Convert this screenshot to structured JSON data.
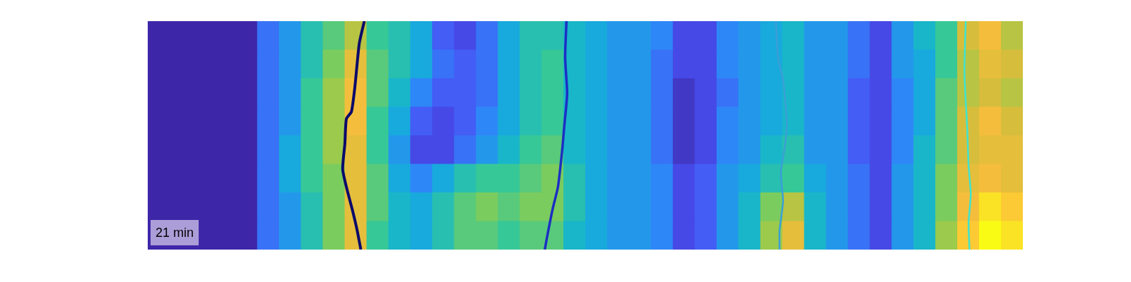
{
  "chart_data": {
    "type": "heatmap",
    "xlim": [
      0,
      40
    ],
    "ylim": [
      0,
      8
    ],
    "tick_labels": false,
    "color_range": [
      0,
      1
    ],
    "cells": [
      [
        0,
        0,
        0,
        0,
        0,
        0.2,
        0.3,
        0.45,
        0.55,
        0.7,
        0.5,
        0.45,
        0.35,
        0.15,
        0.1,
        0.2,
        0.35,
        0.45,
        0.45,
        0.4,
        0.35,
        0.3,
        0.3,
        0.25,
        0.1,
        0.1,
        0.25,
        0.3,
        0.35,
        0.4,
        0.3,
        0.3,
        0.2,
        0.1,
        0.3,
        0.4,
        0.5,
        0.75,
        0.85,
        0.7
      ],
      [
        0,
        0,
        0,
        0,
        0,
        0.2,
        0.3,
        0.45,
        0.6,
        0.8,
        0.55,
        0.45,
        0.35,
        0.2,
        0.15,
        0.2,
        0.35,
        0.45,
        0.5,
        0.4,
        0.35,
        0.3,
        0.3,
        0.2,
        0.1,
        0.1,
        0.25,
        0.3,
        0.35,
        0.4,
        0.3,
        0.3,
        0.2,
        0.1,
        0.3,
        0.35,
        0.5,
        0.7,
        0.8,
        0.75
      ],
      [
        0,
        0,
        0,
        0,
        0,
        0.2,
        0.3,
        0.5,
        0.65,
        0.85,
        0.55,
        0.4,
        0.25,
        0.15,
        0.15,
        0.2,
        0.35,
        0.45,
        0.5,
        0.4,
        0.35,
        0.3,
        0.3,
        0.2,
        0.05,
        0.1,
        0.2,
        0.3,
        0.35,
        0.4,
        0.3,
        0.3,
        0.15,
        0.1,
        0.25,
        0.35,
        0.55,
        0.7,
        0.75,
        0.7
      ],
      [
        0,
        0,
        0,
        0,
        0,
        0.2,
        0.3,
        0.5,
        0.65,
        0.85,
        0.5,
        0.35,
        0.15,
        0.1,
        0.15,
        0.25,
        0.35,
        0.45,
        0.5,
        0.4,
        0.35,
        0.3,
        0.3,
        0.2,
        0.05,
        0.1,
        0.25,
        0.3,
        0.35,
        0.4,
        0.3,
        0.3,
        0.15,
        0.1,
        0.25,
        0.35,
        0.55,
        0.75,
        0.85,
        0.75
      ],
      [
        0,
        0,
        0,
        0,
        0,
        0.2,
        0.35,
        0.5,
        0.65,
        0.8,
        0.5,
        0.3,
        0.1,
        0.1,
        0.2,
        0.3,
        0.4,
        0.5,
        0.55,
        0.4,
        0.35,
        0.3,
        0.3,
        0.2,
        0.05,
        0.1,
        0.25,
        0.3,
        0.4,
        0.45,
        0.3,
        0.3,
        0.15,
        0.1,
        0.25,
        0.4,
        0.55,
        0.75,
        0.8,
        0.8
      ],
      [
        0,
        0,
        0,
        0,
        0,
        0.2,
        0.35,
        0.5,
        0.6,
        0.8,
        0.55,
        0.35,
        0.25,
        0.35,
        0.45,
        0.5,
        0.5,
        0.55,
        0.6,
        0.45,
        0.35,
        0.3,
        0.3,
        0.25,
        0.1,
        0.15,
        0.3,
        0.35,
        0.45,
        0.5,
        0.35,
        0.3,
        0.2,
        0.1,
        0.3,
        0.4,
        0.6,
        0.8,
        0.85,
        0.8
      ],
      [
        0,
        0,
        0,
        0,
        0,
        0.2,
        0.3,
        0.45,
        0.6,
        0.8,
        0.55,
        0.4,
        0.35,
        0.45,
        0.55,
        0.6,
        0.55,
        0.6,
        0.6,
        0.45,
        0.35,
        0.3,
        0.3,
        0.25,
        0.1,
        0.15,
        0.3,
        0.4,
        0.6,
        0.7,
        0.4,
        0.3,
        0.2,
        0.1,
        0.3,
        0.4,
        0.6,
        0.85,
        0.95,
        0.9
      ],
      [
        0,
        0,
        0,
        0,
        0,
        0.2,
        0.3,
        0.45,
        0.6,
        0.8,
        0.5,
        0.4,
        0.35,
        0.45,
        0.55,
        0.55,
        0.5,
        0.55,
        0.55,
        0.4,
        0.35,
        0.3,
        0.3,
        0.25,
        0.1,
        0.15,
        0.3,
        0.4,
        0.65,
        0.8,
        0.4,
        0.3,
        0.2,
        0.1,
        0.3,
        0.4,
        0.65,
        0.9,
        1.0,
        0.95
      ]
    ],
    "series": [
      {
        "color": "#0b0a6a",
        "type": "line",
        "x": [
          9.9,
          9.67,
          9.47,
          9.31,
          9.08,
          9.01,
          8.91,
          9.08,
          9.34,
          9.57,
          9.74
        ],
        "y": [
          0,
          0.78,
          2.29,
          3.17,
          3.42,
          4.3,
          5.18,
          5.81,
          6.57,
          7.32,
          8
        ]
      },
      {
        "color": "#1c2fc4",
        "type": "line",
        "x": [
          19.14,
          19.08,
          19.17,
          19.04,
          18.94,
          18.75,
          18.51,
          18.25,
          18.15
        ],
        "y": [
          0,
          1.28,
          2.54,
          3.67,
          4.55,
          5.81,
          6.57,
          7.57,
          8
        ]
      },
      {
        "color": "#3b9fd6",
        "type": "line",
        "x": [
          28.71,
          28.81,
          29.04,
          29.21,
          29.14,
          28.94,
          29.04,
          28.88,
          28.88
        ],
        "y": [
          0,
          1.28,
          2.04,
          3.55,
          4.3,
          5.31,
          6.31,
          7.32,
          8
        ]
      },
      {
        "color": "#3fe3cf",
        "type": "line",
        "x": [
          37.39,
          37.33,
          37.46,
          37.52,
          37.62,
          37.52,
          37.56
        ],
        "y": [
          0,
          1.79,
          3.8,
          5.06,
          6.06,
          7.07,
          8
        ]
      }
    ],
    "annotations": [
      {
        "text": "21 min"
      }
    ]
  }
}
